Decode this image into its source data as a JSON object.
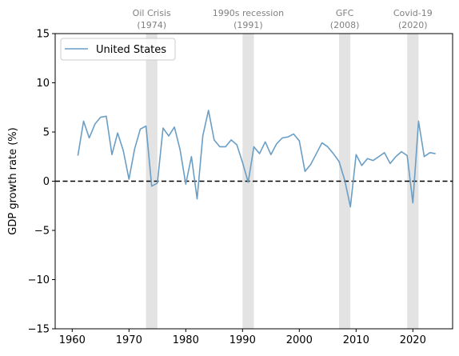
{
  "chart_data": {
    "type": "line",
    "title": "",
    "xlabel": "",
    "ylabel": "GDP growth rate (%)",
    "xlim": [
      1957,
      2027
    ],
    "ylim": [
      -15,
      15
    ],
    "x_ticks": [
      1960,
      1970,
      1980,
      1990,
      2000,
      2010,
      2020
    ],
    "y_ticks": [
      -15,
      -10,
      -5,
      0,
      5,
      10,
      15
    ],
    "y_tick_labels": [
      "−15",
      "−10",
      "−5",
      "0",
      "5",
      "10",
      "15"
    ],
    "legend_position": "top-left",
    "grid": false,
    "zero_line": {
      "y": 0,
      "style": "dashed",
      "color": "#000000"
    },
    "series": [
      {
        "name": "United States",
        "color": "#6a9ec5",
        "x": [
          1961,
          1962,
          1963,
          1964,
          1965,
          1966,
          1967,
          1968,
          1969,
          1970,
          1971,
          1972,
          1973,
          1974,
          1975,
          1976,
          1977,
          1978,
          1979,
          1980,
          1981,
          1982,
          1983,
          1984,
          1985,
          1986,
          1987,
          1988,
          1989,
          1990,
          1991,
          1992,
          1993,
          1994,
          1995,
          1996,
          1997,
          1998,
          1999,
          2000,
          2001,
          2002,
          2003,
          2004,
          2005,
          2006,
          2007,
          2008,
          2009,
          2010,
          2011,
          2012,
          2013,
          2014,
          2015,
          2016,
          2017,
          2018,
          2019,
          2020,
          2021,
          2022,
          2023,
          2024
        ],
        "values": [
          2.6,
          6.1,
          4.4,
          5.8,
          6.5,
          6.6,
          2.7,
          4.9,
          3.1,
          0.2,
          3.3,
          5.3,
          5.6,
          -0.5,
          -0.2,
          5.4,
          4.6,
          5.5,
          3.2,
          -0.3,
          2.5,
          -1.8,
          4.6,
          7.2,
          4.2,
          3.5,
          3.5,
          4.2,
          3.7,
          1.9,
          -0.1,
          3.5,
          2.8,
          4.0,
          2.7,
          3.8,
          4.4,
          4.5,
          4.8,
          4.1,
          1.0,
          1.7,
          2.8,
          3.9,
          3.5,
          2.8,
          2.0,
          0.1,
          -2.6,
          2.7,
          1.6,
          2.3,
          2.1,
          2.5,
          2.9,
          1.8,
          2.5,
          3.0,
          2.6,
          -2.2,
          6.1,
          2.5,
          2.9,
          2.8
        ]
      }
    ],
    "events": [
      {
        "name": "Oil Crisis",
        "year_label": "(1974)",
        "start": 1973,
        "end": 1975
      },
      {
        "name": "1990s recession",
        "year_label": "(1991)",
        "start": 1990,
        "end": 1992
      },
      {
        "name": "GFC",
        "year_label": "(2008)",
        "start": 2007,
        "end": 2009
      },
      {
        "name": "Covid-19",
        "year_label": "(2020)",
        "start": 2019,
        "end": 2021
      }
    ],
    "event_shade_color": "#e3e3e3",
    "event_label_color": "#808080"
  }
}
